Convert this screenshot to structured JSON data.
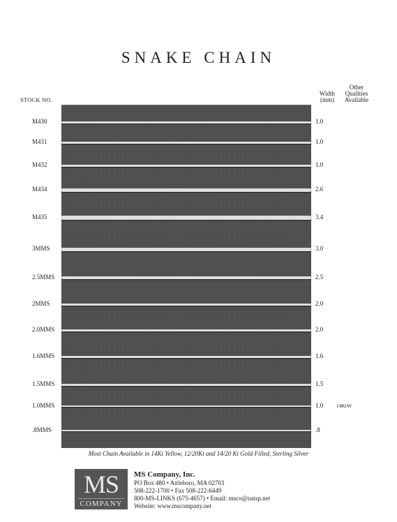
{
  "title": "SNAKE CHAIN",
  "headers": {
    "stock": "STOCK NO.",
    "width_line1": "Width",
    "width_line2": "(mm)",
    "other_line1": "Other",
    "other_line2": "Qualities",
    "other_line3": "Available"
  },
  "rows": [
    {
      "stock": "M430",
      "width": "1.0",
      "other": ""
    },
    {
      "stock": "M431",
      "width": "1.0",
      "other": ""
    },
    {
      "stock": "M432",
      "width": "1.0",
      "other": ""
    },
    {
      "stock": "M434",
      "width": "2.6",
      "other": ""
    },
    {
      "stock": "M435",
      "width": "3.4",
      "other": ""
    },
    {
      "stock": "3MMS",
      "width": "3.0",
      "other": ""
    },
    {
      "stock": "2.5MMS",
      "width": "2.5",
      "other": ""
    },
    {
      "stock": "2MMS",
      "width": "2.0",
      "other": ""
    },
    {
      "stock": "2.0MMS",
      "width": "2.0",
      "other": ""
    },
    {
      "stock": "1.6MMS",
      "width": "1.6",
      "other": ""
    },
    {
      "stock": "1.5MMS",
      "width": "1.5",
      "other": ""
    },
    {
      "stock": "1.0MMS",
      "width": "1.0",
      "other": "14KtW"
    },
    {
      "stock": ".8MMS",
      "width": ".8",
      "other": ""
    }
  ],
  "caption": "Most Chain Available in 14Kt Yellow, 12/20Kt and 14/20 Kt Gold Filled, Sterling Silver",
  "logo": {
    "line1": "MS",
    "line2": "COMPANY"
  },
  "company": {
    "name": "MS Company, Inc.",
    "address": "PO Box 480 • Attleboro, MA 02703",
    "phone": "508-222-1700 • Fax 508-222-6449",
    "tollfree": "800-MS-LINKS (675-4657) • Email: msco@naisp.net",
    "website": "Website: www.mscompany.net"
  }
}
